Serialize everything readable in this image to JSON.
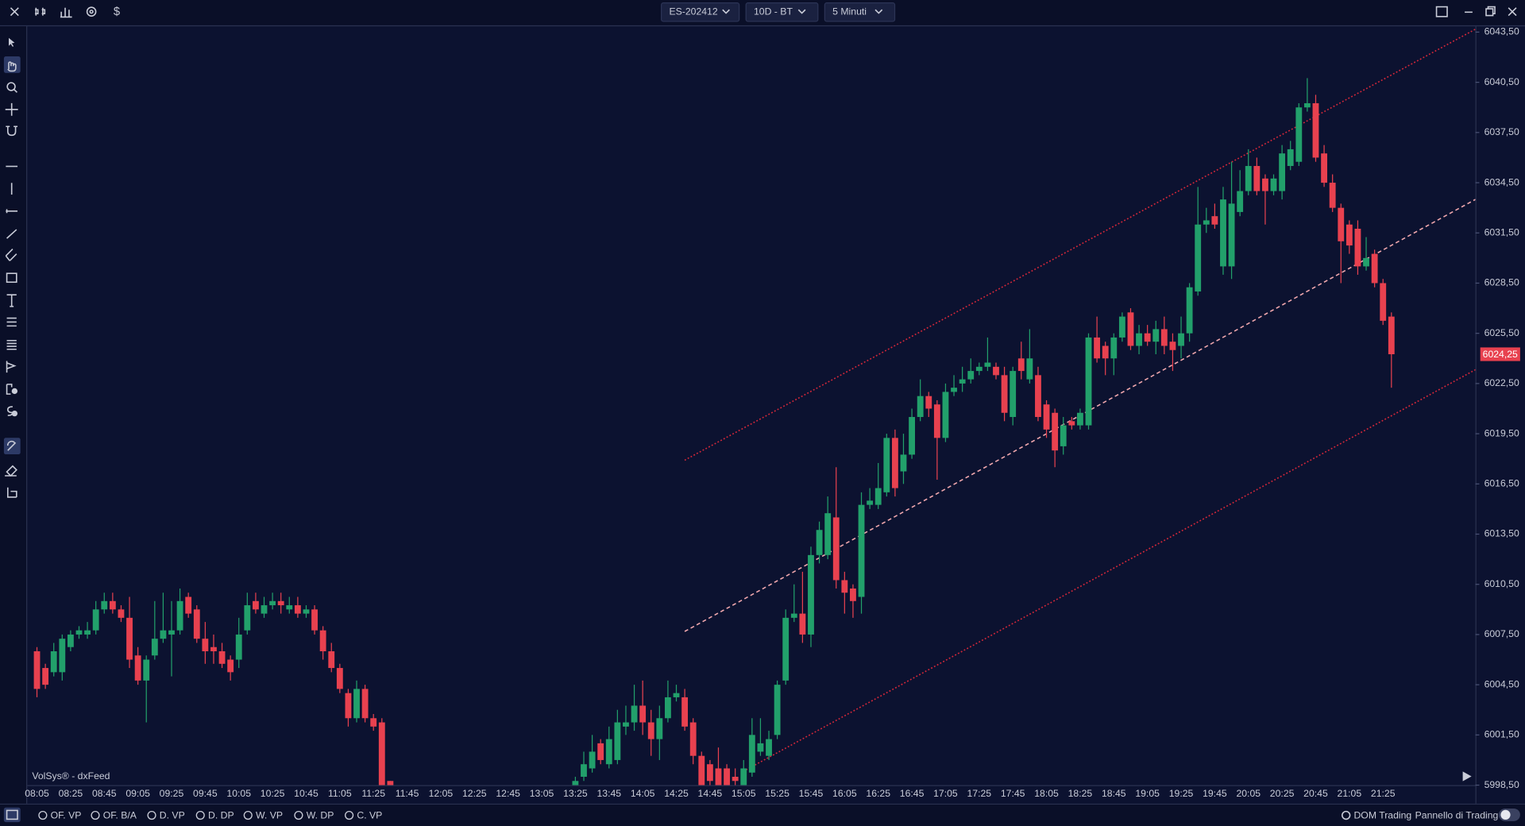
{
  "toolbar": {
    "currency": "$",
    "symbol": "ES-202412",
    "range": "10D - BT",
    "timeframe": "5 Minuti"
  },
  "chart_data": {
    "type": "candlestick",
    "x": [
      "08:05",
      "08:10",
      "08:15",
      "08:20",
      "08:25",
      "08:30",
      "08:35",
      "08:40",
      "08:45",
      "08:50",
      "08:55",
      "09:00",
      "09:05",
      "09:10",
      "09:15",
      "09:20",
      "09:25",
      "09:30",
      "09:35",
      "09:40",
      "09:45",
      "09:50",
      "09:55",
      "10:00",
      "10:05",
      "10:10",
      "10:15",
      "10:20",
      "10:25",
      "10:30",
      "10:35",
      "10:40",
      "10:45",
      "10:50",
      "10:55",
      "11:00",
      "11:05",
      "11:10",
      "11:15",
      "11:20",
      "11:25",
      "11:30",
      "11:35",
      "13:25",
      "13:30",
      "13:35",
      "13:40",
      "13:45",
      "13:50",
      "13:55",
      "14:00",
      "14:05",
      "14:10",
      "14:15",
      "14:20",
      "14:25",
      "14:30",
      "14:35",
      "14:40",
      "14:45",
      "14:50",
      "14:55",
      "15:00",
      "15:05",
      "15:10",
      "15:15",
      "15:20",
      "15:25",
      "15:30",
      "15:35",
      "15:40",
      "15:45",
      "15:50",
      "15:55",
      "16:00",
      "16:05",
      "16:10",
      "16:15",
      "16:20",
      "16:25",
      "16:30",
      "16:35",
      "16:40",
      "16:45",
      "16:50",
      "16:55",
      "17:00",
      "17:05",
      "17:10",
      "17:15",
      "17:20",
      "17:25",
      "17:30",
      "17:35",
      "17:40",
      "17:45",
      "17:50",
      "17:55",
      "18:00",
      "18:05",
      "18:10",
      "18:15",
      "18:20",
      "18:25",
      "18:30",
      "18:35",
      "18:40",
      "18:45",
      "18:50",
      "18:55",
      "19:00",
      "19:05",
      "19:10",
      "19:15",
      "19:20",
      "19:25",
      "19:30",
      "19:35",
      "19:40",
      "19:45",
      "19:50",
      "19:55",
      "20:00",
      "20:05",
      "20:10",
      "20:15",
      "20:20",
      "20:25",
      "20:30",
      "20:35",
      "20:40",
      "20:45",
      "20:50",
      "20:55",
      "21:00",
      "21:05",
      "21:10",
      "21:15",
      "21:20",
      "21:25",
      "21:30"
    ],
    "open": [
      6006.5,
      6005.5,
      6005.25,
      6005.25,
      6006.75,
      6007.5,
      6007.5,
      6007.75,
      6009,
      6009.5,
      6009,
      6008.5,
      6006.25,
      6004.75,
      6006.25,
      6007.25,
      6007.5,
      6007.75,
      6009.75,
      6009,
      6007.25,
      6006.75,
      6006.5,
      6006,
      6006,
      6007.75,
      6009.5,
      6008.75,
      6009.25,
      6009.5,
      6009,
      6009.25,
      6008.75,
      6009,
      6007.75,
      6006.5,
      6005.5,
      6004,
      6002.5,
      6004.25,
      6002.5,
      6002.25,
      5998.75,
      5998.25,
      5999,
      5999.5,
      6001,
      5999.75,
      6000,
      6002,
      6002.25,
      6003.25,
      6002.25,
      6001.25,
      6002.5,
      6003.75,
      6003.75,
      6002.25,
      6000.25,
      5999.75,
      5999.5,
      5999.5,
      5999,
      5998.5,
      5999.25,
      6000.5,
      6000.25,
      6001.5,
      6004.75,
      6008.5,
      6008.75,
      6007.5,
      6012.25,
      6012.25,
      6014.5,
      6010.75,
      6010.25,
      6009.75,
      6015.25,
      6015.25,
      6016,
      6019.25,
      6017.25,
      6018.25,
      6020.5,
      6021.75,
      6021.25,
      6019.25,
      6022,
      6022.5,
      6022.75,
      6023.25,
      6023.5,
      6023.5,
      6023,
      6020.5,
      6024,
      6022.75,
      6023,
      6021.25,
      6020.75,
      6018.75,
      6020.25,
      6020,
      6020,
      6025.25,
      6024.75,
      6024,
      6025.25,
      6026.75,
      6024.75,
      6025.5,
      6025,
      6025.75,
      6025,
      6024.75,
      6025.5,
      6028,
      6032,
      6032.5,
      6029.5,
      6029.5,
      6032.75,
      6034,
      6035.5,
      6034.75,
      6034,
      6034,
      6035.5,
      6035.75,
      6039,
      6039.25,
      6036.25,
      6034.5,
      6033,
      6032,
      6031.75,
      6029.5,
      6030.25,
      6028.5,
      6026.5
    ],
    "high": [
      6006.75,
      6005.75,
      6007,
      6007.5,
      6007.75,
      6008,
      6008.25,
      6009.5,
      6010,
      6010,
      6009.25,
      6009.75,
      6006.75,
      6006.25,
      6009.5,
      6010,
      6009.5,
      6010.25,
      6010,
      6009.25,
      6008.25,
      6007.5,
      6007,
      6006.25,
      6008.5,
      6010,
      6010,
      6009.75,
      6010,
      6010,
      6009.75,
      6009.75,
      6009.25,
      6009.25,
      6008,
      6007,
      6005.75,
      6004.25,
      6004.75,
      6004.5,
      6002.75,
      6002.5,
      5998.75,
      5999,
      6000.5,
      6001.5,
      6001.25,
      6002,
      6003,
      6003.25,
      6004.5,
      6004.75,
      6003,
      6003.25,
      6004.75,
      6004.5,
      6004.25,
      6002.5,
      6000.5,
      6000,
      6000.75,
      5999.75,
      5999.5,
      6000,
      6002.5,
      6002.5,
      6001.75,
      6004.75,
      6009,
      6010.5,
      6011.25,
      6012.75,
      6014.25,
      6015.75,
      6017.5,
      6011.25,
      6010.5,
      6016,
      6016.25,
      6017.75,
      6019.5,
      6019.75,
      6019.5,
      6021,
      6022.75,
      6022,
      6021.5,
      6022.5,
      6023,
      6023.5,
      6024,
      6023.75,
      6025.25,
      6023.75,
      6023.5,
      6023.5,
      6025,
      6025.75,
      6023.5,
      6021.5,
      6021,
      6020.5,
      6020.5,
      6021,
      6025.5,
      6026.5,
      6025,
      6025.5,
      6026.75,
      6027,
      6026,
      6026,
      6026.25,
      6026.5,
      6025.5,
      6026.5,
      6028.5,
      6034.25,
      6033,
      6033.25,
      6034.25,
      6035.75,
      6035.25,
      6036.5,
      6036,
      6035,
      6035,
      6036.75,
      6037,
      6039.25,
      6040.75,
      6039.75,
      6036.75,
      6035,
      6033.25,
      6032.25,
      6032.25,
      6031.25,
      6030.5,
      6028.75,
      6026.75
    ],
    "low": [
      6003.75,
      6004.25,
      6005,
      6004.75,
      6006.5,
      6007.25,
      6007.25,
      6007.5,
      6008.75,
      6008.75,
      6008.25,
      6005.5,
      6004.5,
      6002.25,
      6006,
      6007,
      6005,
      6007.5,
      6008.5,
      6007,
      6005.75,
      6005.75,
      6005.5,
      6004.75,
      6005.5,
      6007.5,
      6008.75,
      6008.5,
      6009,
      6008.75,
      6008.75,
      6008.5,
      6008.5,
      6007.5,
      6006,
      6005.25,
      6004,
      6002,
      6002.25,
      6002.25,
      6001.75,
      5997.75,
      5997,
      5997.5,
      5998.75,
      5999.25,
      5999.75,
      5999.5,
      5999.75,
      6001.5,
      6001.75,
      6001.5,
      6000.25,
      6000,
      6002.25,
      6003.5,
      6001.75,
      5999.75,
      5997.75,
      5998.25,
      5998,
      5998,
      5998.25,
      5998.25,
      5999,
      6000.25,
      6000,
      6001.25,
      6004.5,
      6008.25,
      6007,
      6006.75,
      6011.75,
      6012,
      6010.25,
      6008.75,
      6008.5,
      6008.75,
      6015,
      6015,
      6015.75,
      6015.75,
      6016.5,
      6018,
      6020.25,
      6020.5,
      6016.75,
      6019,
      6021.75,
      6022,
      6022.5,
      6023,
      6023.25,
      6022.75,
      6020.25,
      6020,
      6022.75,
      6022.5,
      6020.25,
      6019.25,
      6017.5,
      6018.25,
      6019.75,
      6019.75,
      6019.75,
      6023.75,
      6023,
      6023,
      6025,
      6024.5,
      6024.25,
      6024.75,
      6024.25,
      6024.25,
      6023.25,
      6024,
      6025,
      6027.75,
      6031.5,
      6031.75,
      6029,
      6028.75,
      6032.5,
      6033.75,
      6033.75,
      6032,
      6033.75,
      6033.5,
      6035.25,
      6035.5,
      6038.75,
      6035.75,
      6034.25,
      6032.75,
      6028.5,
      6030.25,
      6029,
      6029.25,
      6028.25,
      6026,
      6022.25
    ],
    "close": [
      6004.25,
      6004.5,
      6006.5,
      6007.25,
      6007.5,
      6007.75,
      6007.75,
      6009,
      6009.5,
      6009,
      6008.5,
      6006,
      6004.75,
      6006,
      6007.25,
      6007.75,
      6007.75,
      6009.5,
      6008.75,
      6007.25,
      6006.5,
      6006.5,
      6005.75,
      6005.25,
      6007.5,
      6009.25,
      6009,
      6009.25,
      6009.5,
      6009.25,
      6009.25,
      6008.75,
      6009,
      6007.75,
      6006.5,
      6005.5,
      6004.25,
      6002.5,
      6004.25,
      6002.5,
      6002,
      5998.25,
      5997.25,
      5998.75,
      5999.75,
      6000.5,
      6000,
      6001.25,
      6002.25,
      6002.25,
      6003.25,
      6002.25,
      6001.25,
      6002.5,
      6003.75,
      6004,
      6002,
      6000.25,
      5998.5,
      5998.75,
      5998.5,
      5998.5,
      5998.75,
      5999.5,
      6001.5,
      6001,
      6001.25,
      6004.5,
      6008.5,
      6008.75,
      6007.5,
      6012.25,
      6013.75,
      6014.75,
      6010.75,
      6010,
      6009.5,
      6015.25,
      6015.5,
      6016.25,
      6019.25,
      6016.25,
      6018.25,
      6020.5,
      6021.75,
      6021,
      6019.25,
      6022,
      6022.25,
      6022.75,
      6023.25,
      6023.5,
      6023.75,
      6023,
      6020.75,
      6023.25,
      6023.25,
      6024,
      6020.5,
      6019.75,
      6018.5,
      6020,
      6020,
      6020.75,
      6025.25,
      6024,
      6024,
      6025.25,
      6026.5,
      6024.75,
      6025.5,
      6025,
      6025.75,
      6024.75,
      6024.5,
      6025.5,
      6028.25,
      6032,
      6032.25,
      6032,
      6033.5,
      6033.25,
      6034,
      6035.5,
      6034,
      6034,
      6034.75,
      6036.25,
      6036.5,
      6039,
      6039.25,
      6036,
      6034.5,
      6033,
      6031,
      6030.75,
      6029.5,
      6030,
      6028.5,
      6026.25,
      6024.25
    ],
    "up_color": "#22a06b",
    "down_color": "#e8414f",
    "ylim": [
      5998.5,
      6043.5
    ],
    "yticks": [
      {
        "value": 5998.5,
        "label": "5998,50"
      },
      {
        "value": 6001.5,
        "label": "6001,50"
      },
      {
        "value": 6004.5,
        "label": "6004,50"
      },
      {
        "value": 6007.5,
        "label": "6007,50"
      },
      {
        "value": 6010.5,
        "label": "6010,50"
      },
      {
        "value": 6013.5,
        "label": "6013,50"
      },
      {
        "value": 6016.5,
        "label": "6016,50"
      },
      {
        "value": 6019.5,
        "label": "6019,50"
      },
      {
        "value": 6022.5,
        "label": "6022,50"
      },
      {
        "value": 6025.5,
        "label": "6025,50"
      },
      {
        "value": 6028.5,
        "label": "6028,50"
      },
      {
        "value": 6031.5,
        "label": "6031,50"
      },
      {
        "value": 6034.5,
        "label": "6034,50"
      },
      {
        "value": 6037.5,
        "label": "6037,50"
      },
      {
        "value": 6040.5,
        "label": "6040,50"
      },
      {
        "value": 6043.5,
        "label": "6043,50"
      }
    ],
    "xticks": [
      "08:05",
      "08:25",
      "08:45",
      "09:05",
      "09:25",
      "09:45",
      "10:05",
      "10:25",
      "10:45",
      "11:05",
      "11:25",
      "11:45",
      "12:05",
      "12:25",
      "12:45",
      "13:05",
      "13:25",
      "13:45",
      "14:05",
      "14:25",
      "14:45",
      "15:05",
      "15:25",
      "15:45",
      "16:05",
      "16:25",
      "16:45",
      "17:05",
      "17:25",
      "17:45",
      "18:05",
      "18:25",
      "18:45",
      "19:05",
      "19:25",
      "19:45",
      "20:05",
      "20:25",
      "20:45",
      "21:05",
      "21:25"
    ],
    "last_price": {
      "value": 6024.25,
      "label": "6024,25"
    },
    "last_color": "#e8414f"
  },
  "footer": {
    "watermark": "VolSys® - dxFeed",
    "indicators": [
      "OF. VP",
      "OF. B/A",
      "D. VP",
      "D. DP",
      "W. VP",
      "W. DP",
      "C. VP"
    ],
    "dom": "DOM Trading",
    "panel": "Pannello di Trading"
  }
}
